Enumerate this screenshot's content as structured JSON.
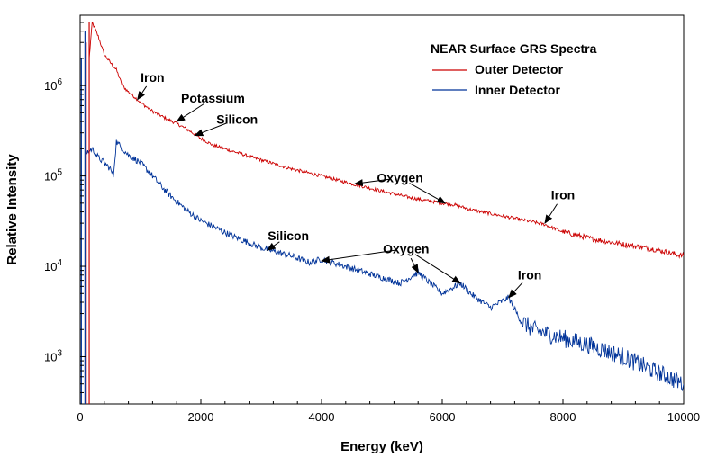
{
  "chart_data": {
    "type": "line",
    "title": "",
    "xlabel": "Energy (keV)",
    "ylabel": "Relative Intensity",
    "xlim": [
      0,
      10000
    ],
    "ylim": [
      300,
      6000000
    ],
    "yscale": "log",
    "x_ticks": [
      0,
      2000,
      4000,
      6000,
      8000,
      10000
    ],
    "y_ticks": [
      {
        "value": 1000,
        "base": "10",
        "exp": "3"
      },
      {
        "value": 10000,
        "base": "10",
        "exp": "4"
      },
      {
        "value": 100000,
        "base": "10",
        "exp": "5"
      },
      {
        "value": 1000000,
        "base": "10",
        "exp": "6"
      }
    ],
    "legend": {
      "title": "NEAR Surface GRS Spectra",
      "placement": "top-right"
    },
    "series": [
      {
        "name": "Outer Detector",
        "color": "#cc0000",
        "points": [
          [
            150,
            2000000
          ],
          [
            200,
            5000000
          ],
          [
            300,
            3500000
          ],
          [
            400,
            2200000
          ],
          [
            500,
            1800000
          ],
          [
            600,
            1500000
          ],
          [
            700,
            1000000
          ],
          [
            800,
            850000
          ],
          [
            900,
            750000
          ],
          [
            1000,
            650000
          ],
          [
            1200,
            520000
          ],
          [
            1400,
            440000
          ],
          [
            1600,
            380000
          ],
          [
            1800,
            320000
          ],
          [
            2000,
            260000
          ],
          [
            2200,
            220000
          ],
          [
            2500,
            190000
          ],
          [
            3000,
            150000
          ],
          [
            3500,
            120000
          ],
          [
            4000,
            100000
          ],
          [
            4500,
            82000
          ],
          [
            5000,
            68000
          ],
          [
            5500,
            57000
          ],
          [
            6000,
            50000
          ],
          [
            6200,
            48000
          ],
          [
            6500,
            42000
          ],
          [
            7000,
            36000
          ],
          [
            7500,
            31000
          ],
          [
            7700,
            29000
          ],
          [
            8000,
            24000
          ],
          [
            8500,
            20000
          ],
          [
            9000,
            17500
          ],
          [
            9500,
            15500
          ],
          [
            10000,
            13000
          ]
        ]
      },
      {
        "name": "Inner Detector",
        "color": "#003399",
        "points": [
          [
            100,
            180000
          ],
          [
            200,
            200000
          ],
          [
            300,
            160000
          ],
          [
            400,
            140000
          ],
          [
            500,
            120000
          ],
          [
            550,
            100000
          ],
          [
            600,
            240000
          ],
          [
            700,
            200000
          ],
          [
            800,
            170000
          ],
          [
            1000,
            140000
          ],
          [
            1200,
            100000
          ],
          [
            1400,
            70000
          ],
          [
            1600,
            52000
          ],
          [
            1800,
            40000
          ],
          [
            2000,
            32000
          ],
          [
            2500,
            22000
          ],
          [
            3000,
            16000
          ],
          [
            3500,
            13000
          ],
          [
            3800,
            11000
          ],
          [
            4000,
            12000
          ],
          [
            4500,
            9500
          ],
          [
            5000,
            7500
          ],
          [
            5300,
            6500
          ],
          [
            5600,
            8500
          ],
          [
            5800,
            6500
          ],
          [
            6000,
            5000
          ],
          [
            6300,
            6500
          ],
          [
            6500,
            4800
          ],
          [
            6800,
            3500
          ],
          [
            7100,
            4500
          ],
          [
            7300,
            2500
          ],
          [
            7500,
            2000
          ],
          [
            8000,
            1600
          ],
          [
            8500,
            1300
          ],
          [
            9000,
            1000
          ],
          [
            9500,
            700
          ],
          [
            10000,
            500
          ]
        ]
      }
    ],
    "annotations": [
      {
        "label": "Iron",
        "text_x": 1200,
        "text_y": 1100000,
        "arrow_x": 950,
        "arrow_y": 700000
      },
      {
        "label": "Potassium",
        "text_x": 2200,
        "text_y": 650000,
        "arrow_x": 1600,
        "arrow_y": 400000
      },
      {
        "label": "Silicon",
        "text_x": 2600,
        "text_y": 380000,
        "arrow_x": 1900,
        "arrow_y": 280000
      },
      {
        "label": "Oxygen",
        "text_x": 5300,
        "text_y": 85000,
        "arrow_x": 4550,
        "arrow_y": 82000
      },
      {
        "label": "Oxygen",
        "text_x": 5300,
        "text_y": 85000,
        "arrow_x": 6050,
        "arrow_y": 50000
      },
      {
        "label": "Iron",
        "text_x": 8000,
        "text_y": 55000,
        "arrow_x": 7700,
        "arrow_y": 30000
      },
      {
        "label": "Silicon",
        "text_x": 3450,
        "text_y": 19500,
        "arrow_x": 3100,
        "arrow_y": 15000
      },
      {
        "label": "Oxygen",
        "text_x": 5400,
        "text_y": 14000,
        "arrow_x": 4000,
        "arrow_y": 11500
      },
      {
        "label": "Oxygen",
        "text_x": 5400,
        "text_y": 14000,
        "arrow_x": 5600,
        "arrow_y": 8500
      },
      {
        "label": "Oxygen",
        "text_x": 5400,
        "text_y": 14000,
        "arrow_x": 6300,
        "arrow_y": 6500
      },
      {
        "label": "Iron",
        "text_x": 7450,
        "text_y": 7200,
        "arrow_x": 7100,
        "arrow_y": 4500
      }
    ],
    "grid": false
  }
}
